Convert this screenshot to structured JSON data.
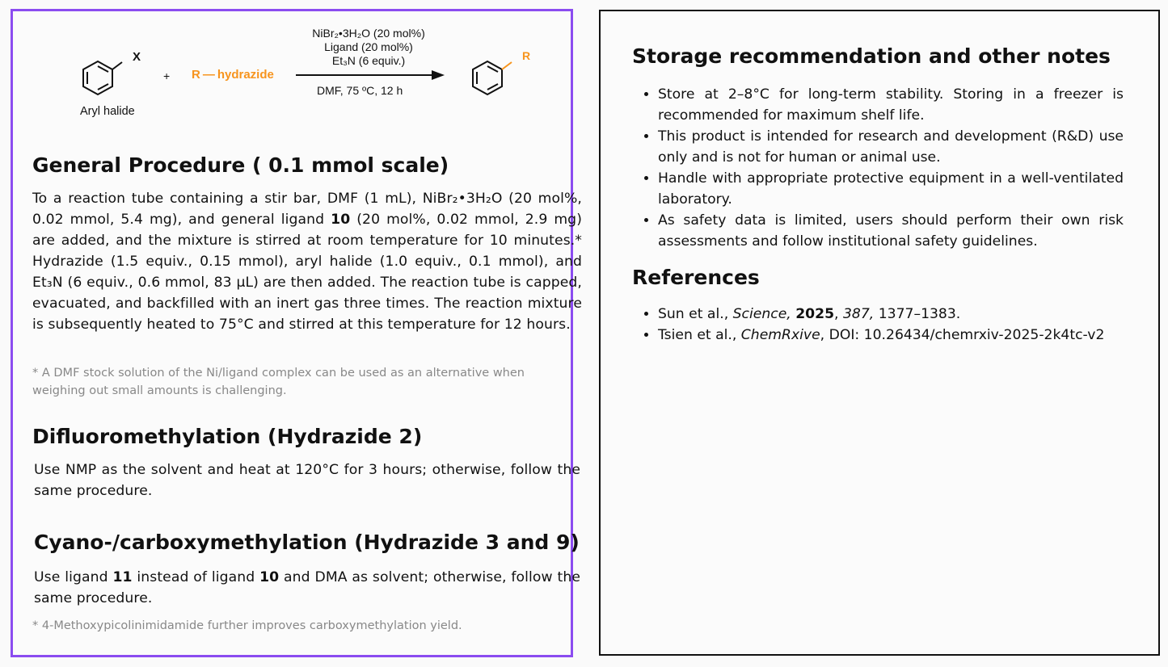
{
  "scheme": {
    "aryl_halide_label": "Aryl halide",
    "x_label": "X",
    "plus": "+",
    "reagent": "R — hydrazide",
    "cond1": "NiBr₂•3H₂O (20 mol%)",
    "cond2": "Ligand (20 mol%)",
    "cond3": "Et₃N (6 equiv.)",
    "cond4": "DMF, 75 ºC, 12 h",
    "product_r": "R",
    "accent_color": "#f7941d"
  },
  "general": {
    "title": "General Procedure ( 0.1 mmol scale)",
    "p1": "To a reaction tube containing a stir bar, DMF (1 mL), NiBr₂•3H₂O (20 mol%, 0.02 mmol, 5.4 mg), and general ligand ",
    "ligand": "10",
    "p2": " (20 mol%, 0.02 mmol, 2.9 mg) are added, and the mixture is stirred at room temperature for 10 minutes.* Hydrazide (1.5 equiv., 0.15 mmol), aryl halide (1.0 equiv., 0.1 mmol), and Et₃N (6 equiv., 0.6 mmol, 83 µL) are then added. The reaction tube is capped, evacuated, and backfilled with an inert gas three times. The reaction mixture is subsequently heated to 75°C and stirred at this temperature for 12 hours.",
    "note": "* A DMF stock solution of the Ni/ligand complex can be used as an alternative when weighing out small amounts is challenging."
  },
  "difluoro": {
    "title": "Difluoromethylation (Hydrazide 2)",
    "text": "Use NMP as the solvent and heat at 120°C for 3 hours; otherwise, follow the same procedure."
  },
  "cyano": {
    "title": "Cyano-/carboxymethylation (Hydrazide 3 and 9)",
    "t1": "Use ligand ",
    "b1": "11",
    "t2": " instead of ligand ",
    "b2": "10",
    "t3": " and DMA as solvent; otherwise, follow the same procedure.",
    "note": "* 4-Methoxypicolinimidamide further improves carboxymethylation yield."
  },
  "storage": {
    "title": "Storage recommendation and other notes",
    "items": [
      "Store at 2–8°C for long-term stability. Storing in a freezer is recommended for maximum shelf life.",
      "This product is intended for research and development (R&D) use only and is not for human or animal use.",
      "Handle with appropriate protective equipment in a well-ventilated laboratory.",
      "As safety data is limited, users should perform their own risk assessments and follow institutional safety guidelines."
    ]
  },
  "references": {
    "title": "References",
    "r1": {
      "authors": "Sun et al., ",
      "journal": "Science,",
      "year": "2025",
      "volume": "387,",
      "pages": " 1377–1383."
    },
    "r2": {
      "authors": "Tsien et al., ",
      "journal": "ChemRxive",
      "rest": ", DOI: 10.26434/chemrxiv-2025-2k4tc-v2"
    }
  }
}
